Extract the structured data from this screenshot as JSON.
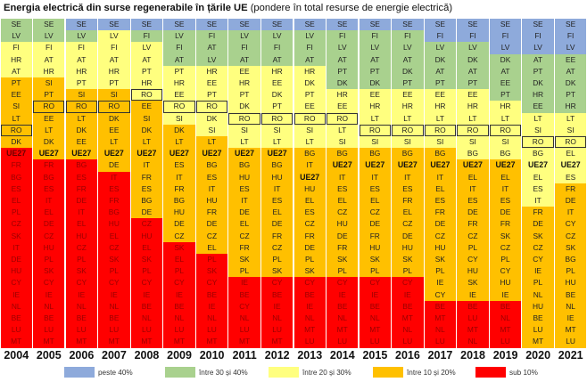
{
  "title": {
    "bold": "Energia electrică din surse regenerabile în țările UE",
    "normal": "(pondere în total resurse de energie electrică)"
  },
  "colors": [
    "#8eaadb",
    "#a9d18e",
    "#ffff7f",
    "#ffc000",
    "#ff0000"
  ],
  "legend": [
    {
      "label": "peste 40%",
      "color": "#8eaadb"
    },
    {
      "label": "între 30 și 40%",
      "color": "#a9d18e"
    },
    {
      "label": "între 20 și 30%",
      "color": "#ffff7f"
    },
    {
      "label": "între 10 și 20%",
      "color": "#ffc000"
    },
    {
      "label": "sub 10%",
      "color": "#ff0000"
    }
  ],
  "chart_data": {
    "type": "table",
    "title": "Energia electrică din surse regenerabile în țările UE (pondere în total resurse de energie electrică)",
    "highlight": "RO",
    "aggregate": "UE27",
    "categories_legend": [
      "peste 40%",
      "între 30 și 40%",
      "între 20 și 30%",
      "între 10 și 20%",
      "sub 10%"
    ],
    "columns": [
      {
        "year": "2004",
        "band_counts": [
          0,
          2,
          3,
          6,
          17
        ],
        "ranking": [
          "SE",
          "LV",
          "FI",
          "HR",
          "AT",
          "PT",
          "EE",
          "SI",
          "LT",
          "RO",
          "DK",
          "UE27",
          "FR",
          "BG",
          "ES",
          "EL",
          "PL",
          "CZ",
          "SK",
          "IT",
          "DE",
          "HU",
          "CY",
          "IE",
          "NL",
          "BE",
          "LU",
          "MT"
        ]
      },
      {
        "year": "2005",
        "band_counts": [
          0,
          2,
          3,
          7,
          16
        ],
        "ranking": [
          "SE",
          "LV",
          "FI",
          "AT",
          "HR",
          "SI",
          "PT",
          "RO",
          "EE",
          "LT",
          "DK",
          "UE27",
          "FR",
          "BG",
          "ES",
          "IT",
          "EL",
          "DE",
          "CZ",
          "HU",
          "PL",
          "SK",
          "CY",
          "IE",
          "NL",
          "BE",
          "LU",
          "MT"
        ]
      },
      {
        "year": "2006",
        "band_counts": [
          1,
          1,
          4,
          6,
          16
        ],
        "ranking": [
          "SE",
          "LV",
          "FI",
          "AT",
          "HR",
          "PT",
          "SI",
          "RO",
          "LT",
          "DK",
          "EE",
          "UE27",
          "BG",
          "ES",
          "FR",
          "DE",
          "IT",
          "EL",
          "HU",
          "CZ",
          "PL",
          "SK",
          "CY",
          "IE",
          "NL",
          "BE",
          "LU",
          "MT"
        ]
      },
      {
        "year": "2007",
        "band_counts": [
          1,
          0,
          5,
          7,
          15
        ],
        "ranking": [
          "SE",
          "LV",
          "FI",
          "AT",
          "HR",
          "PT",
          "SI",
          "RO",
          "DK",
          "EE",
          "LT",
          "UE27",
          "DE",
          "IT",
          "ES",
          "FR",
          "BG",
          "HU",
          "EL",
          "CZ",
          "SK",
          "PL",
          "CY",
          "IE",
          "NL",
          "BE",
          "LU",
          "MT"
        ]
      },
      {
        "year": "2008",
        "band_counts": [
          1,
          1,
          5,
          10,
          11
        ],
        "ranking": [
          "SE",
          "FI",
          "LV",
          "AT",
          "PT",
          "HR",
          "RO",
          "EE",
          "SI",
          "DK",
          "LT",
          "UE27",
          "IT",
          "FR",
          "ES",
          "BG",
          "DE",
          "CZ",
          "HU",
          "EL",
          "SK",
          "PL",
          "CY",
          "IE",
          "BE",
          "NL",
          "LU",
          "MT"
        ]
      },
      {
        "year": "2009",
        "band_counts": [
          1,
          3,
          5,
          10,
          9
        ],
        "ranking": [
          "SE",
          "LV",
          "FI",
          "AT",
          "PT",
          "HR",
          "EE",
          "RO",
          "SI",
          "DK",
          "LT",
          "UE27",
          "ES",
          "IT",
          "FR",
          "BG",
          "HU",
          "DE",
          "CZ",
          "SK",
          "EL",
          "PL",
          "CY",
          "IE",
          "BE",
          "NL",
          "LU",
          "MT"
        ]
      },
      {
        "year": "2010",
        "band_counts": [
          1,
          3,
          6,
          10,
          8
        ],
        "ranking": [
          "SE",
          "FI",
          "AT",
          "LV",
          "HR",
          "EE",
          "PT",
          "RO",
          "DK",
          "SI",
          "LT",
          "UE27",
          "BG",
          "ES",
          "IT",
          "HU",
          "FR",
          "DE",
          "CZ",
          "EL",
          "PL",
          "SK",
          "CY",
          "BE",
          "IE",
          "NL",
          "LU",
          "MT"
        ]
      },
      {
        "year": "2011",
        "band_counts": [
          1,
          3,
          7,
          11,
          6
        ],
        "ranking": [
          "SE",
          "LV",
          "FI",
          "AT",
          "EE",
          "HR",
          "PT",
          "DK",
          "RO",
          "SI",
          "LT",
          "UE27",
          "BG",
          "HU",
          "ES",
          "IT",
          "DE",
          "EL",
          "CZ",
          "FR",
          "SK",
          "PL",
          "IE",
          "BE",
          "CY",
          "NL",
          "LU",
          "MT"
        ]
      },
      {
        "year": "2012",
        "band_counts": [
          1,
          3,
          7,
          11,
          6
        ],
        "ranking": [
          "SE",
          "LV",
          "FI",
          "AT",
          "HR",
          "EE",
          "DK",
          "PT",
          "RO",
          "SI",
          "LT",
          "UE27",
          "BG",
          "HU",
          "IT",
          "ES",
          "EL",
          "DE",
          "FR",
          "CZ",
          "PL",
          "SK",
          "CY",
          "BE",
          "IE",
          "NL",
          "LU",
          "MT"
        ]
      },
      {
        "year": "2013",
        "band_counts": [
          1,
          3,
          7,
          11,
          6
        ],
        "ranking": [
          "SE",
          "LV",
          "FI",
          "AT",
          "HR",
          "DK",
          "PT",
          "EE",
          "RO",
          "SI",
          "LT",
          "BG",
          "IT",
          "UE27",
          "HU",
          "EL",
          "ES",
          "CZ",
          "FR",
          "DE",
          "PL",
          "SK",
          "CY",
          "BE",
          "IE",
          "NL",
          "MT",
          "LU"
        ]
      },
      {
        "year": "2014",
        "band_counts": [
          1,
          5,
          5,
          11,
          6
        ],
        "ranking": [
          "SE",
          "FI",
          "LV",
          "AT",
          "PT",
          "DK",
          "HR",
          "EE",
          "RO",
          "LT",
          "SI",
          "BG",
          "UE27",
          "IT",
          "ES",
          "EL",
          "CZ",
          "HU",
          "DE",
          "FR",
          "SK",
          "PL",
          "CY",
          "IE",
          "BE",
          "NL",
          "MT",
          "LU"
        ]
      },
      {
        "year": "2015",
        "band_counts": [
          1,
          5,
          5,
          11,
          6
        ],
        "ranking": [
          "SE",
          "FI",
          "LV",
          "AT",
          "PT",
          "DK",
          "EE",
          "HR",
          "LT",
          "RO",
          "SI",
          "BG",
          "UE27",
          "IT",
          "ES",
          "EL",
          "CZ",
          "DE",
          "FR",
          "HU",
          "SK",
          "PL",
          "CY",
          "IE",
          "BE",
          "NL",
          "MT",
          "LU"
        ]
      },
      {
        "year": "2016",
        "band_counts": [
          1,
          5,
          5,
          11,
          6
        ],
        "ranking": [
          "SE",
          "FI",
          "LV",
          "AT",
          "DK",
          "PT",
          "EE",
          "HR",
          "LT",
          "RO",
          "SI",
          "BG",
          "UE27",
          "IT",
          "ES",
          "FR",
          "EL",
          "CZ",
          "DE",
          "HU",
          "SK",
          "PL",
          "CY",
          "IE",
          "BE",
          "MT",
          "NL",
          "LU"
        ]
      },
      {
        "year": "2017",
        "band_counts": [
          2,
          4,
          5,
          13,
          4
        ],
        "ranking": [
          "SE",
          "FI",
          "LV",
          "DK",
          "AT",
          "PT",
          "EE",
          "HR",
          "LT",
          "RO",
          "SI",
          "BG",
          "UE27",
          "IT",
          "EL",
          "ES",
          "FR",
          "DE",
          "CZ",
          "HU",
          "SK",
          "PL",
          "IE",
          "CY",
          "BE",
          "MT",
          "NL",
          "LU"
        ]
      },
      {
        "year": "2018",
        "band_counts": [
          2,
          4,
          6,
          12,
          4
        ],
        "ranking": [
          "SE",
          "FI",
          "LV",
          "DK",
          "AT",
          "PT",
          "EE",
          "HR",
          "LT",
          "RO",
          "SI",
          "BG",
          "UE27",
          "EL",
          "IT",
          "ES",
          "DE",
          "FR",
          "CZ",
          "PL",
          "CY",
          "HU",
          "SK",
          "IE",
          "BE",
          "LU",
          "MT",
          "NL"
        ]
      },
      {
        "year": "2019",
        "band_counts": [
          3,
          4,
          5,
          12,
          4
        ],
        "ranking": [
          "SE",
          "FI",
          "LV",
          "DK",
          "AT",
          "EE",
          "PT",
          "HR",
          "LT",
          "RO",
          "SI",
          "BG",
          "UE27",
          "EL",
          "IT",
          "ES",
          "DE",
          "FR",
          "SK",
          "CZ",
          "PL",
          "CY",
          "HU",
          "IE",
          "BE",
          "NL",
          "MT",
          "LU"
        ]
      },
      {
        "year": "2020",
        "band_counts": [
          3,
          5,
          8,
          12,
          0
        ],
        "ranking": [
          "SE",
          "FI",
          "LV",
          "AT",
          "PT",
          "DK",
          "HR",
          "EE",
          "LT",
          "SI",
          "RO",
          "BG",
          "UE27",
          "EL",
          "ES",
          "IT",
          "FR",
          "DE",
          "SK",
          "CZ",
          "CY",
          "IE",
          "PL",
          "NL",
          "HU",
          "BE",
          "LU",
          "MT"
        ]
      },
      {
        "year": "2021",
        "band_counts": [
          3,
          5,
          6,
          14,
          0
        ],
        "ranking": [
          "SE",
          "FI",
          "LV",
          "EE",
          "AT",
          "DK",
          "PT",
          "HR",
          "LT",
          "SI",
          "RO",
          "EL",
          "UE27",
          "ES",
          "FR",
          "DE",
          "IT",
          "CY",
          "CZ",
          "SK",
          "BG",
          "PL",
          "HU",
          "BE",
          "NL",
          "IE",
          "MT",
          "LU"
        ]
      }
    ]
  }
}
